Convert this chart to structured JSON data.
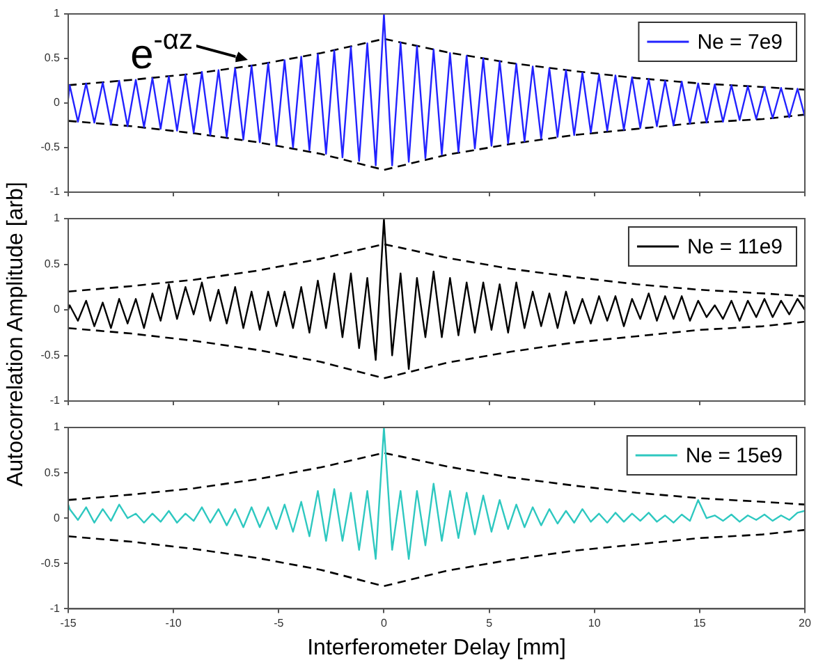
{
  "chart_data": [
    {
      "type": "line",
      "legend": "top right",
      "tick_labels": "y",
      "xlim": [
        -15,
        20
      ],
      "xticks": [
        -15,
        -10,
        -5,
        0,
        5,
        10,
        15,
        20
      ],
      "ylim": [
        -1,
        1
      ],
      "yticks": [
        -1,
        -0.5,
        0,
        0.5,
        1
      ],
      "annotations": [
        {
          "text": "e$^{-αz}$",
          "x": -6.3,
          "y": 0.45
        }
      ],
      "x": [
        -15,
        -14.93,
        -14.54,
        -14.15,
        -13.76,
        -13.36,
        -12.97,
        -12.58,
        -12.18,
        -11.79,
        -11.4,
        -11.0,
        -10.61,
        -10.22,
        -9.83,
        -9.43,
        -9.04,
        -8.65,
        -8.25,
        -7.86,
        -7.47,
        -7.07,
        -6.68,
        -6.29,
        -5.9,
        -5.5,
        -5.11,
        -4.72,
        -4.32,
        -3.93,
        -3.54,
        -3.14,
        -2.75,
        -2.36,
        -1.97,
        -1.57,
        -1.18,
        -0.79,
        -0.39,
        0,
        0.39,
        0.79,
        1.18,
        1.57,
        1.97,
        2.36,
        2.75,
        3.14,
        3.54,
        3.93,
        4.32,
        4.72,
        5.11,
        5.5,
        5.9,
        6.29,
        6.68,
        7.07,
        7.47,
        7.86,
        8.25,
        8.65,
        9.04,
        9.43,
        9.83,
        10.22,
        10.61,
        11.0,
        11.4,
        11.79,
        12.18,
        12.58,
        12.97,
        13.36,
        13.76,
        14.15,
        14.54,
        14.93,
        15.33,
        15.72,
        16.11,
        16.51,
        16.9,
        17.29,
        17.69,
        18.08,
        18.47,
        18.87,
        19.26,
        19.65,
        20
      ],
      "series": [
        {
          "name": "Ne = 7e9",
          "color": "#2222ff",
          "values": [
            0.05,
            0.2,
            -0.21,
            0.22,
            -0.22,
            0.23,
            -0.24,
            0.25,
            -0.26,
            0.26,
            -0.27,
            0.28,
            -0.29,
            0.3,
            -0.31,
            0.32,
            -0.33,
            0.35,
            -0.36,
            0.37,
            -0.38,
            0.39,
            -0.41,
            0.42,
            -0.44,
            0.45,
            -0.47,
            0.48,
            -0.5,
            0.52,
            -0.53,
            0.55,
            -0.57,
            0.59,
            -0.61,
            0.63,
            -0.65,
            0.67,
            -0.7,
            1.0,
            -0.7,
            0.68,
            -0.66,
            0.64,
            -0.62,
            0.6,
            -0.58,
            0.56,
            -0.55,
            0.53,
            -0.51,
            0.5,
            -0.48,
            0.47,
            -0.45,
            0.44,
            -0.43,
            0.41,
            -0.4,
            0.39,
            -0.38,
            0.37,
            -0.36,
            0.34,
            -0.33,
            0.32,
            -0.31,
            0.31,
            -0.3,
            0.29,
            -0.28,
            0.27,
            -0.26,
            0.25,
            -0.25,
            0.24,
            -0.23,
            0.22,
            -0.22,
            0.21,
            -0.21,
            0.2,
            -0.19,
            0.19,
            -0.18,
            0.18,
            -0.17,
            0.17,
            -0.16,
            0.16,
            -0.15
          ]
        },
        {
          "color": "#000000",
          "line_style": "dashed",
          "x": [
            -15,
            -12,
            -9,
            -6,
            -3,
            0,
            3,
            6,
            9,
            12,
            15,
            18,
            20
          ],
          "values": [
            0.2,
            0.26,
            0.33,
            0.43,
            0.56,
            0.72,
            0.57,
            0.45,
            0.36,
            0.28,
            0.22,
            0.18,
            0.15
          ]
        },
        {
          "color": "#000000",
          "line_style": "dashed",
          "x": [
            -15,
            -12,
            -9,
            -6,
            -3,
            0,
            3,
            6,
            9,
            12,
            15,
            18,
            20
          ],
          "values": [
            -0.2,
            -0.26,
            -0.34,
            -0.44,
            -0.57,
            -0.75,
            -0.58,
            -0.46,
            -0.36,
            -0.29,
            -0.22,
            -0.18,
            -0.13
          ]
        }
      ]
    },
    {
      "type": "line",
      "legend": "top right",
      "tick_labels": "y",
      "xlim": [
        -15,
        20
      ],
      "xticks": [
        -15,
        -10,
        -5,
        0,
        5,
        10,
        15,
        20
      ],
      "ylim": [
        -1,
        1
      ],
      "yticks": [
        -1,
        -0.5,
        0,
        0.5,
        1
      ],
      "ylabel": "Autocorrelation Amplitude [arb]",
      "x": [
        -15,
        -14.93,
        -14.54,
        -14.15,
        -13.76,
        -13.36,
        -12.97,
        -12.58,
        -12.18,
        -11.79,
        -11.4,
        -11.0,
        -10.61,
        -10.22,
        -9.83,
        -9.43,
        -9.04,
        -8.65,
        -8.25,
        -7.86,
        -7.47,
        -7.07,
        -6.68,
        -6.29,
        -5.9,
        -5.5,
        -5.11,
        -4.72,
        -4.32,
        -3.93,
        -3.54,
        -3.14,
        -2.75,
        -2.36,
        -1.97,
        -1.57,
        -1.18,
        -0.79,
        -0.39,
        0,
        0.39,
        0.79,
        1.18,
        1.57,
        1.97,
        2.36,
        2.75,
        3.14,
        3.54,
        3.93,
        4.32,
        4.72,
        5.11,
        5.5,
        5.9,
        6.29,
        6.68,
        7.07,
        7.47,
        7.86,
        8.25,
        8.65,
        9.04,
        9.43,
        9.83,
        10.22,
        10.61,
        11.0,
        11.4,
        11.79,
        12.18,
        12.58,
        12.97,
        13.36,
        13.76,
        14.15,
        14.54,
        14.93,
        15.33,
        15.72,
        16.11,
        16.51,
        16.9,
        17.29,
        17.69,
        18.08,
        18.47,
        18.87,
        19.26,
        19.65,
        20
      ],
      "series": [
        {
          "name": "Ne = 11e9",
          "color": "#000000",
          "values": [
            0.0,
            0.05,
            -0.12,
            0.1,
            -0.18,
            0.08,
            -0.2,
            0.12,
            -0.15,
            0.12,
            -0.2,
            0.18,
            -0.12,
            0.28,
            -0.1,
            0.25,
            -0.05,
            0.3,
            -0.12,
            0.22,
            -0.15,
            0.25,
            -0.2,
            0.2,
            -0.22,
            0.2,
            -0.18,
            0.2,
            -0.2,
            0.25,
            -0.25,
            0.32,
            -0.2,
            0.4,
            -0.3,
            0.4,
            -0.42,
            0.35,
            -0.55,
            1.0,
            -0.5,
            0.4,
            -0.65,
            0.35,
            -0.3,
            0.42,
            -0.3,
            0.35,
            -0.28,
            0.3,
            -0.25,
            0.3,
            -0.22,
            0.28,
            -0.25,
            0.3,
            -0.2,
            0.2,
            -0.18,
            0.18,
            -0.2,
            0.2,
            -0.15,
            0.12,
            -0.15,
            0.15,
            -0.12,
            0.15,
            -0.18,
            0.12,
            -0.1,
            0.18,
            -0.12,
            0.15,
            -0.1,
            0.15,
            -0.12,
            0.1,
            -0.08,
            0.05,
            -0.1,
            0.1,
            -0.12,
            0.1,
            -0.08,
            0.12,
            -0.08,
            0.1,
            -0.05,
            0.12,
            0.0
          ]
        },
        {
          "color": "#000000",
          "line_style": "dashed",
          "x": [
            -15,
            -12,
            -9,
            -6,
            -3,
            0,
            3,
            6,
            9,
            12,
            15,
            18,
            20
          ],
          "values": [
            0.2,
            0.26,
            0.33,
            0.43,
            0.56,
            0.72,
            0.57,
            0.45,
            0.36,
            0.28,
            0.22,
            0.18,
            0.15
          ]
        },
        {
          "color": "#000000",
          "line_style": "dashed",
          "x": [
            -15,
            -12,
            -9,
            -6,
            -3,
            0,
            3,
            6,
            9,
            12,
            15,
            18,
            20
          ],
          "values": [
            -0.2,
            -0.26,
            -0.34,
            -0.44,
            -0.57,
            -0.75,
            -0.58,
            -0.46,
            -0.36,
            -0.29,
            -0.22,
            -0.18,
            -0.13
          ]
        }
      ]
    },
    {
      "type": "line",
      "legend": "top right",
      "xlabel": "Interferometer Delay [mm]",
      "xlim": [
        -15,
        20
      ],
      "xticks": [
        -15,
        -10,
        -5,
        0,
        5,
        10,
        15,
        20
      ],
      "ylim": [
        -1,
        1
      ],
      "yticks": [
        -1,
        -0.5,
        0,
        0.5,
        1
      ],
      "x": [
        -15,
        -14.93,
        -14.54,
        -14.15,
        -13.76,
        -13.36,
        -12.97,
        -12.58,
        -12.18,
        -11.79,
        -11.4,
        -11.0,
        -10.61,
        -10.22,
        -9.83,
        -9.43,
        -9.04,
        -8.65,
        -8.25,
        -7.86,
        -7.47,
        -7.07,
        -6.68,
        -6.29,
        -5.9,
        -5.5,
        -5.11,
        -4.72,
        -4.32,
        -3.93,
        -3.54,
        -3.14,
        -2.75,
        -2.36,
        -1.97,
        -1.57,
        -1.18,
        -0.79,
        -0.39,
        0,
        0.39,
        0.79,
        1.18,
        1.57,
        1.97,
        2.36,
        2.75,
        3.14,
        3.54,
        3.93,
        4.32,
        4.72,
        5.11,
        5.5,
        5.9,
        6.29,
        6.68,
        7.07,
        7.47,
        7.86,
        8.25,
        8.65,
        9.04,
        9.43,
        9.83,
        10.22,
        10.61,
        11.0,
        11.4,
        11.79,
        12.18,
        12.58,
        12.97,
        13.36,
        13.76,
        14.15,
        14.54,
        14.93,
        15.33,
        15.72,
        16.11,
        16.51,
        16.9,
        17.29,
        17.69,
        18.08,
        18.47,
        18.87,
        19.26,
        19.65,
        20
      ],
      "series": [
        {
          "name": "Ne = 15e9",
          "color": "#2ec8c0",
          "values": [
            0.15,
            0.1,
            -0.02,
            0.12,
            -0.05,
            0.1,
            -0.03,
            0.15,
            0.0,
            0.05,
            -0.05,
            0.05,
            -0.04,
            0.08,
            -0.05,
            0.05,
            -0.03,
            0.12,
            -0.05,
            0.1,
            -0.08,
            0.1,
            -0.1,
            0.12,
            -0.1,
            0.12,
            -0.12,
            0.15,
            -0.15,
            0.18,
            -0.2,
            0.3,
            -0.25,
            0.32,
            -0.25,
            0.28,
            -0.35,
            0.3,
            -0.45,
            1.0,
            -0.35,
            0.3,
            -0.45,
            0.3,
            -0.3,
            0.38,
            -0.25,
            0.3,
            -0.22,
            0.28,
            -0.18,
            0.25,
            -0.15,
            0.2,
            -0.12,
            0.15,
            -0.1,
            0.12,
            -0.08,
            0.1,
            -0.06,
            0.08,
            -0.05,
            0.1,
            -0.04,
            0.05,
            -0.05,
            0.06,
            -0.04,
            0.05,
            -0.03,
            0.06,
            -0.04,
            0.03,
            -0.05,
            0.04,
            -0.03,
            0.2,
            0.0,
            0.03,
            -0.03,
            0.04,
            -0.04,
            0.03,
            -0.02,
            0.04,
            -0.03,
            0.03,
            -0.02,
            0.06,
            0.08
          ]
        },
        {
          "color": "#000000",
          "line_style": "dashed",
          "x": [
            -15,
            -12,
            -9,
            -6,
            -3,
            0,
            3,
            6,
            9,
            12,
            15,
            18,
            20
          ],
          "values": [
            0.2,
            0.26,
            0.33,
            0.43,
            0.56,
            0.72,
            0.57,
            0.45,
            0.36,
            0.28,
            0.22,
            0.18,
            0.15
          ]
        },
        {
          "color": "#000000",
          "line_style": "dashed",
          "x": [
            -15,
            -12,
            -9,
            -6,
            -3,
            0,
            3,
            6,
            9,
            12,
            15,
            18,
            20
          ],
          "values": [
            -0.2,
            -0.26,
            -0.34,
            -0.44,
            -0.57,
            -0.75,
            -0.58,
            -0.46,
            -0.36,
            -0.29,
            -0.22,
            -0.18,
            -0.13
          ]
        }
      ]
    }
  ]
}
